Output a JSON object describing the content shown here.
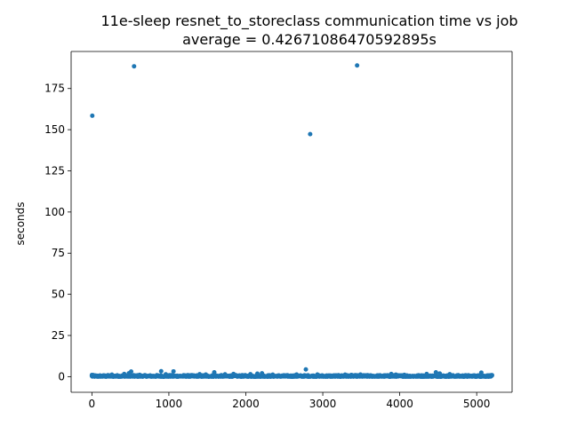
{
  "chart_data": {
    "type": "scatter",
    "title": "11e-sleep resnet_to_storeclass communication time vs job",
    "subtitle": "average = 0.42671086470592895s",
    "xlabel": "",
    "ylabel": "seconds",
    "xlim": [
      -270,
      5460
    ],
    "ylim": [
      -9.5,
      197.5
    ],
    "xticks": [
      0,
      1000,
      2000,
      3000,
      4000,
      5000
    ],
    "xtick_labels": [
      "0",
      "1000",
      "2000",
      "3000",
      "4000",
      "5000"
    ],
    "yticks": [
      0,
      25,
      50,
      75,
      100,
      125,
      150,
      175
    ],
    "ytick_labels": [
      "0",
      "25",
      "50",
      "75",
      "100",
      "125",
      "150",
      "175"
    ],
    "grid": false,
    "legend": "none",
    "marker_color": "#1f77b4",
    "outliers": {
      "x": [
        5,
        548,
        2836,
        3446
      ],
      "y": [
        158.5,
        188.5,
        147.3,
        189
      ]
    },
    "elevated_points": {
      "x": [
        0,
        20,
        260,
        420,
        480,
        510,
        620,
        900,
        960,
        1060,
        1400,
        1480,
        1590,
        1730,
        1840,
        2060,
        2150,
        2210,
        2350,
        2660,
        2780,
        2930,
        3290,
        3370,
        3490,
        3890,
        3950,
        4060,
        4350,
        4470,
        4520,
        4650,
        5060
      ],
      "y": [
        1.0,
        0.9,
        1.2,
        1.6,
        2.0,
        3.1,
        1.1,
        3.3,
        1.4,
        3.2,
        1.5,
        1.3,
        2.6,
        1.4,
        1.6,
        1.5,
        1.8,
        2.0,
        1.2,
        1.3,
        4.4,
        1.3,
        1.2,
        1.0,
        1.3,
        1.6,
        1.2,
        1.1,
        1.6,
        2.6,
        1.9,
        1.5,
        2.4
      ]
    },
    "baseline_range": {
      "x_start": 0,
      "x_end": 5200,
      "y_min": 0.0,
      "y_max": 0.9,
      "count": 5200
    }
  }
}
